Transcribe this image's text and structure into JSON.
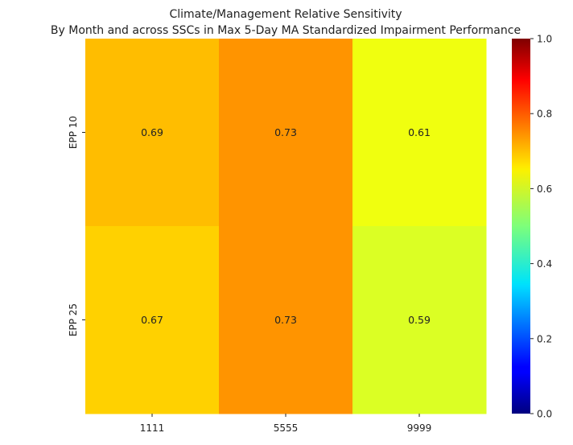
{
  "chart_data": {
    "type": "heatmap",
    "title_lines": [
      "Climate/Management Relative Sensitivity",
      "By Month and across SSCs in Max 5-Day MA Standardized Impairment Performance"
    ],
    "xlabel": "",
    "ylabel": "",
    "x_categories": [
      "1111",
      "5555",
      "9999"
    ],
    "y_categories": [
      "EPP 10",
      "EPP 25"
    ],
    "values": [
      [
        0.69,
        0.73,
        0.61
      ],
      [
        0.67,
        0.73,
        0.59
      ]
    ],
    "value_labels": [
      [
        "0.69",
        "0.73",
        "0.61"
      ],
      [
        "0.67",
        "0.73",
        "0.59"
      ]
    ],
    "colorscale": "jet",
    "vmin": 0.0,
    "vmax": 1.0,
    "colorbar_ticks": [
      0.0,
      0.2,
      0.4,
      0.6,
      0.8,
      1.0
    ],
    "colorbar_tick_labels": [
      "0.0",
      "0.2",
      "0.4",
      "0.6",
      "0.8",
      "1.0"
    ],
    "grid": false
  }
}
